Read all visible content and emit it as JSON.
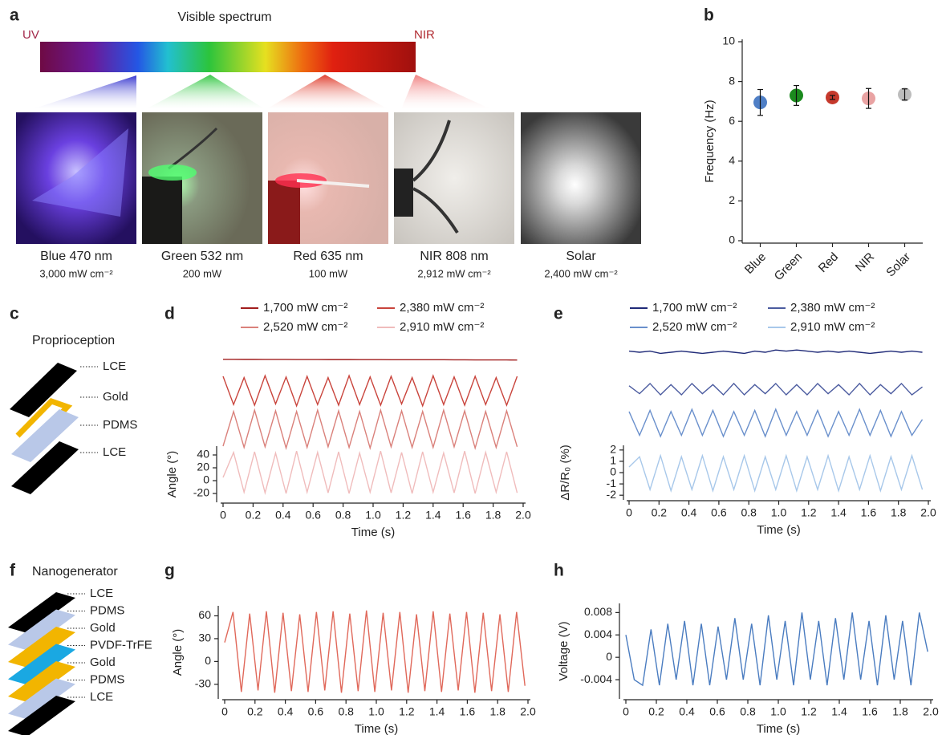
{
  "panel_labels": [
    "a",
    "b",
    "c",
    "d",
    "e",
    "f",
    "g",
    "h"
  ],
  "spectrum": {
    "title": "Visible spectrum",
    "left": "UV",
    "right": "NIR"
  },
  "photos": [
    {
      "name": "Blue 470 nm",
      "power": "3,000 mW cm⁻²"
    },
    {
      "name": "Green 532 nm",
      "power": "200 mW"
    },
    {
      "name": "Red 635 nm",
      "power": "100 mW"
    },
    {
      "name": "NIR 808 nm",
      "power": "2,912 mW cm⁻²"
    },
    {
      "name": "Solar",
      "power": "2,400 mW cm⁻²"
    }
  ],
  "proprioception": {
    "title": "Proprioception",
    "layers": [
      "LCE",
      "Gold",
      "PDMS",
      "LCE"
    ]
  },
  "nanogenerator": {
    "title": "Nanogenerator",
    "layers": [
      "LCE",
      "PDMS",
      "Gold",
      "PVDF-TrFE",
      "Gold",
      "PDMS",
      "LCE"
    ]
  },
  "chart_data": [
    {
      "type": "scatter",
      "y_label": "Frequency (Hz)",
      "categories": [
        "Blue",
        "Green",
        "Red",
        "NIR",
        "Solar"
      ],
      "values": [
        6.95,
        7.3,
        7.2,
        7.15,
        7.35
      ],
      "errors": [
        0.65,
        0.5,
        0.1,
        0.5,
        0.28
      ],
      "colors": [
        "#4f7fc6",
        "#1b8a1e",
        "#c6392c",
        "#e9a3a3",
        "#bdbdbd"
      ],
      "ylim": [
        0,
        10
      ],
      "yticks": [
        0,
        2,
        4,
        6,
        8,
        10
      ]
    },
    {
      "type": "line",
      "x_label": "Time (s)",
      "y_label": "Angle (°)",
      "x": [
        0,
        0.07,
        0.14,
        0.21,
        0.28,
        0.35,
        0.42,
        0.49,
        0.56,
        0.63,
        0.7,
        0.77,
        0.84,
        0.91,
        0.98,
        1.05,
        1.12,
        1.19,
        1.26,
        1.33,
        1.4,
        1.47,
        1.54,
        1.61,
        1.68,
        1.75,
        1.82,
        1.89,
        1.96
      ],
      "xlim": [
        0,
        2
      ],
      "xticks": [
        0,
        0.2,
        0.4,
        0.6,
        0.8,
        {
          "value": 1,
          "label": "1.0"
        },
        1.2,
        1.4,
        1.6,
        1.8,
        {
          "value": 2,
          "label": "2.0"
        }
      ],
      "ylim": [
        -30,
        50
      ],
      "yticks": [
        -20,
        0,
        20,
        40
      ],
      "series": [
        {
          "name": "1,700 mW cm⁻²",
          "color": "#a11d1d",
          "values": [
            1.5,
            1.5,
            1.4,
            1.4,
            1.3,
            1.3,
            1.3,
            1.2,
            1.2,
            1.2,
            1.1,
            1.1,
            1.1,
            1,
            1,
            1,
            0.9,
            0.9,
            0.9,
            0.8,
            0.8,
            0.8,
            0.7,
            0.7,
            0.6,
            0.6,
            0.5,
            0.5,
            0.4
          ]
        },
        {
          "name": "2,380 mW cm⁻²",
          "color": "#c9443c",
          "values": [
            30,
            -14,
            28,
            -15,
            31,
            -13,
            29,
            -16,
            30,
            -14,
            28,
            -15,
            31,
            -14,
            29,
            -15,
            30,
            -13,
            28,
            -16,
            31,
            -14,
            29,
            -15,
            30,
            -14,
            28,
            -15,
            30
          ]
        },
        {
          "name": "2,520 mW cm⁻²",
          "color": "#da817b",
          "values": [
            -20,
            34,
            -22,
            36,
            -21,
            35,
            -23,
            34,
            -22,
            36,
            -21,
            35,
            -22,
            34,
            -23,
            36,
            -21,
            35,
            -22,
            34,
            -22,
            36,
            -21,
            35,
            -23,
            34,
            -22,
            35,
            -21
          ]
        },
        {
          "name": "2,910 mW cm⁻²",
          "color": "#f0bcbc",
          "values": [
            5,
            44,
            -18,
            45,
            -19,
            43,
            -20,
            46,
            -18,
            44,
            -19,
            45,
            -20,
            43,
            -18,
            46,
            -19,
            44,
            -20,
            45,
            -18,
            43,
            -19,
            46,
            -20,
            44,
            -18,
            45,
            -19
          ]
        }
      ]
    },
    {
      "type": "line",
      "x_label": "Time (s)",
      "y_label": "ΔR/R₀ (%)",
      "x": [
        0,
        0.07,
        0.14,
        0.21,
        0.28,
        0.35,
        0.42,
        0.49,
        0.56,
        0.63,
        0.7,
        0.77,
        0.84,
        0.91,
        0.98,
        1.05,
        1.12,
        1.19,
        1.26,
        1.33,
        1.4,
        1.47,
        1.54,
        1.61,
        1.68,
        1.75,
        1.82,
        1.89,
        1.96
      ],
      "xlim": [
        0,
        2
      ],
      "xticks": [
        0,
        0.2,
        0.4,
        0.6,
        0.8,
        {
          "value": 1,
          "label": "1.0"
        },
        1.2,
        1.4,
        1.6,
        1.8,
        {
          "value": 2,
          "label": "2.0"
        }
      ],
      "ylim": [
        -2.2,
        2.2
      ],
      "yticks": [
        -2,
        -1,
        0,
        1,
        2
      ],
      "series": [
        {
          "name": "1,700 mW cm⁻²",
          "color": "#1f2a78",
          "values": [
            0.1,
            0,
            0.1,
            -0.1,
            0,
            0.1,
            0,
            -0.1,
            0,
            0.1,
            0,
            -0.1,
            0.1,
            0,
            0.2,
            0.1,
            0.2,
            0.1,
            0,
            0.1,
            0,
            0.1,
            0,
            -0.1,
            0,
            0.1,
            0,
            0.1,
            0
          ]
        },
        {
          "name": "2,380 mW cm⁻²",
          "color": "#4b5b9f",
          "values": [
            0.3,
            -0.4,
            0.5,
            -0.5,
            0.4,
            -0.5,
            0.5,
            -0.4,
            0.4,
            -0.5,
            0.5,
            -0.5,
            0.4,
            -0.4,
            0.5,
            -0.5,
            0.4,
            -0.5,
            0.5,
            -0.4,
            0.4,
            -0.5,
            0.5,
            -0.5,
            0.4,
            -0.4,
            0.5,
            -0.5,
            0.2
          ]
        },
        {
          "name": "2,520 mW cm⁻²",
          "color": "#6a90cc",
          "values": [
            1,
            -1.1,
            1.1,
            -1.2,
            1,
            -1.1,
            1.2,
            -1.1,
            1.1,
            -1.2,
            1,
            -1.1,
            1.1,
            -1.2,
            1.2,
            -1.1,
            1,
            -1.1,
            1.1,
            -1.2,
            1,
            -1.1,
            1.2,
            -1.1,
            1.1,
            -1.2,
            1,
            -1.1,
            0.3
          ]
        },
        {
          "name": "2,910 mW cm⁻²",
          "color": "#a8c8ea",
          "values": [
            0.5,
            1.4,
            -1.5,
            1.5,
            -1.6,
            1.4,
            -1.5,
            1.5,
            -1.6,
            1.4,
            -1.5,
            1.5,
            -1.6,
            1.4,
            -1.5,
            1.5,
            -1.6,
            1.4,
            -1.5,
            1.5,
            -1.6,
            1.4,
            -1.5,
            1.5,
            -1.6,
            1.4,
            -1.5,
            1.5,
            -1.5
          ]
        }
      ]
    },
    {
      "type": "line",
      "x_label": "Time (s)",
      "y_label": "Angle (°)",
      "x": [
        0,
        0.055,
        0.11,
        0.165,
        0.22,
        0.275,
        0.33,
        0.385,
        0.44,
        0.495,
        0.55,
        0.605,
        0.66,
        0.715,
        0.77,
        0.825,
        0.88,
        0.935,
        0.99,
        1.045,
        1.1,
        1.155,
        1.21,
        1.265,
        1.32,
        1.375,
        1.43,
        1.485,
        1.54,
        1.595,
        1.65,
        1.705,
        1.76,
        1.815,
        1.87,
        1.925,
        1.98
      ],
      "xlim": [
        0,
        2
      ],
      "xticks": [
        0,
        0.2,
        0.4,
        0.6,
        0.8,
        {
          "value": 1,
          "label": "1.0"
        },
        1.2,
        1.4,
        1.6,
        1.8,
        {
          "value": 2,
          "label": "2.0"
        }
      ],
      "ylim": [
        -46,
        70
      ],
      "yticks": [
        -30,
        0,
        30,
        60
      ],
      "series": [
        {
          "color": "#e0685a",
          "values": [
            25,
            65,
            -40,
            63,
            -38,
            66,
            -41,
            64,
            -39,
            62,
            -40,
            65,
            -38,
            66,
            -41,
            63,
            -39,
            67,
            -40,
            64,
            -38,
            65,
            -41,
            62,
            -39,
            66,
            -40,
            63,
            -38,
            65,
            -41,
            64,
            -39,
            62,
            -40,
            65,
            -32
          ]
        }
      ]
    },
    {
      "type": "line",
      "x_label": "Time (s)",
      "y_label": "Voltage (V)",
      "x": [
        0,
        0.055,
        0.11,
        0.165,
        0.22,
        0.275,
        0.33,
        0.385,
        0.44,
        0.495,
        0.55,
        0.605,
        0.66,
        0.715,
        0.77,
        0.825,
        0.88,
        0.935,
        0.99,
        1.045,
        1.1,
        1.155,
        1.21,
        1.265,
        1.32,
        1.375,
        1.43,
        1.485,
        1.54,
        1.595,
        1.65,
        1.705,
        1.76,
        1.815,
        1.87,
        1.925,
        1.98
      ],
      "xlim": [
        0,
        2
      ],
      "xticks": [
        0,
        0.2,
        0.4,
        0.6,
        0.8,
        {
          "value": 1,
          "label": "1.0"
        },
        1.2,
        1.4,
        1.6,
        1.8,
        {
          "value": 2,
          "label": "2.0"
        }
      ],
      "ylim": [
        -0.007,
        0.0092
      ],
      "yticks": [
        -0.004,
        0,
        0.004,
        0.008
      ],
      "series": [
        {
          "color": "#4a7cc0",
          "values": [
            0.004,
            -0.004,
            -0.005,
            0.005,
            -0.005,
            0.006,
            -0.004,
            0.0065,
            -0.005,
            0.006,
            -0.005,
            0.0055,
            -0.004,
            0.007,
            -0.004,
            0.006,
            -0.005,
            0.0075,
            -0.004,
            0.0065,
            -0.005,
            0.008,
            -0.004,
            0.0065,
            -0.005,
            0.007,
            -0.004,
            0.008,
            -0.004,
            0.0065,
            -0.005,
            0.0075,
            -0.004,
            0.0065,
            -0.005,
            0.008,
            0.001
          ]
        }
      ]
    }
  ]
}
